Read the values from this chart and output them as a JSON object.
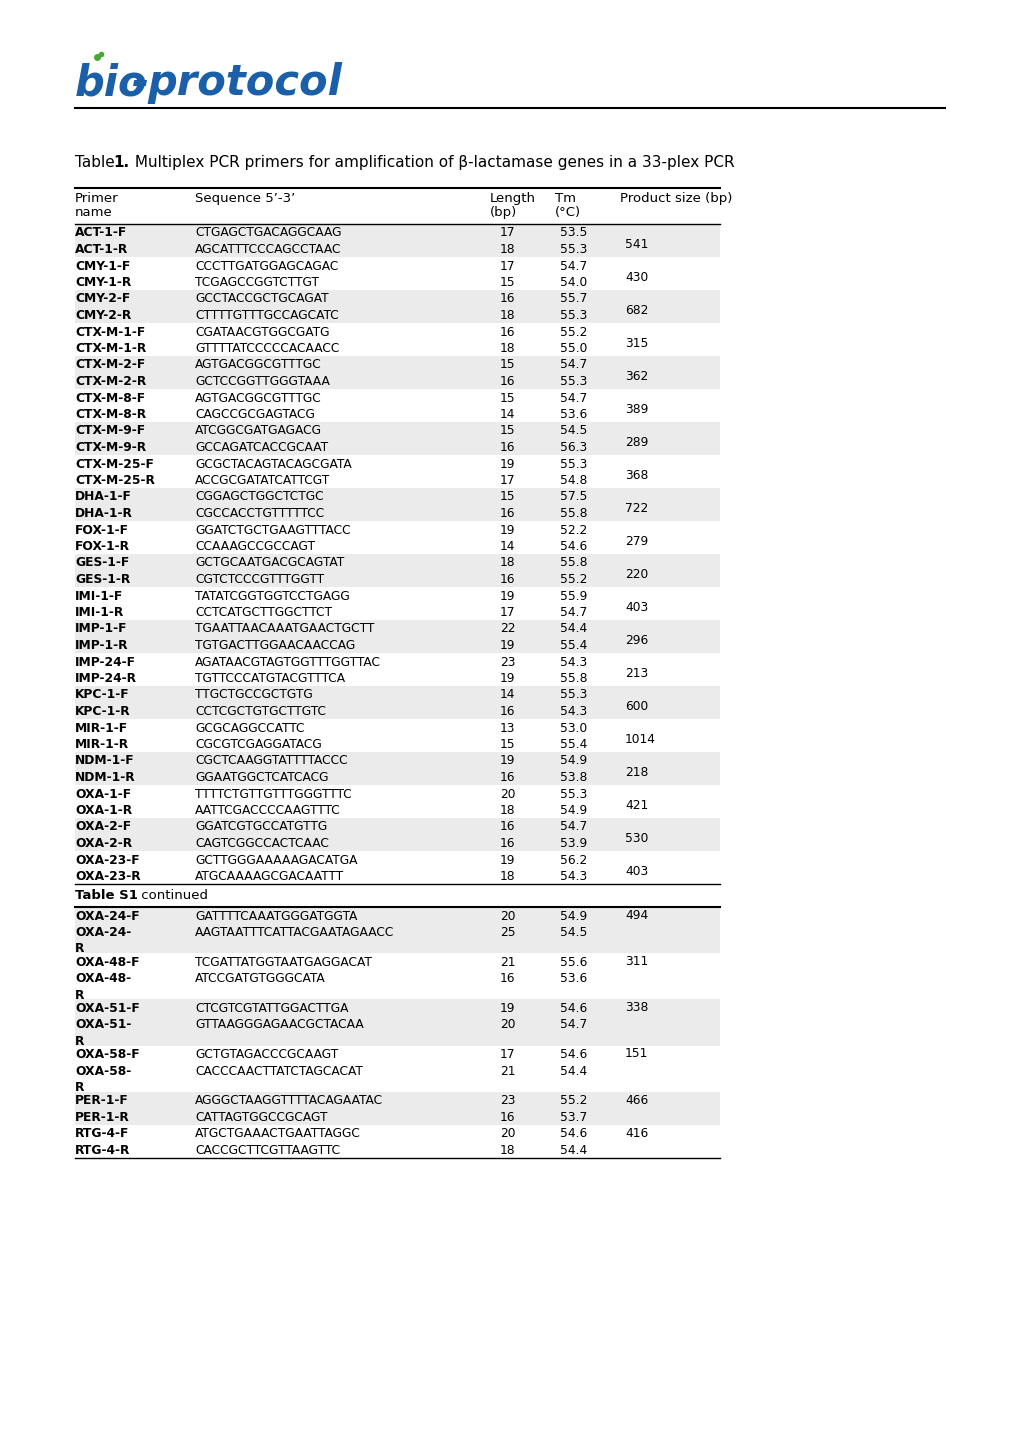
{
  "title_prefix": "Table ",
  "title_num": "1.",
  "title_suffix": " Multiplex PCR primers for amplification of β-lactamase genes in a 33-plex PCR",
  "header1": [
    "Primer",
    "Sequence 5’-3’",
    "Length",
    "Tm",
    "Product size (bp)"
  ],
  "header2": [
    "name",
    "",
    "(bp)",
    "(°C)",
    ""
  ],
  "rows": [
    [
      "ACT-1-F",
      "CTGAGCTGACAGGCAAG",
      "17",
      "53.5",
      "541"
    ],
    [
      "ACT-1-R",
      "AGCATTTCCCAGCCTAAC",
      "18",
      "55.3",
      ""
    ],
    [
      "CMY-1-F",
      "CCCTTGATGGAGCAGAC",
      "17",
      "54.7",
      "430"
    ],
    [
      "CMY-1-R",
      "TCGAGCCGGTCTTGT",
      "15",
      "54.0",
      ""
    ],
    [
      "CMY-2-F",
      "GCCTACCGCTGCAGAT",
      "16",
      "55.7",
      "682"
    ],
    [
      "CMY-2-R",
      "CTTTTGTTTGCCAGCATC",
      "18",
      "55.3",
      ""
    ],
    [
      "CTX-M-1-F",
      "CGATAACGTGGCGATG",
      "16",
      "55.2",
      "315"
    ],
    [
      "CTX-M-1-R",
      "GTTTTATCCCCCACAACC",
      "18",
      "55.0",
      ""
    ],
    [
      "CTX-M-2-F",
      "AGTGACGGCGTTTGC",
      "15",
      "54.7",
      "362"
    ],
    [
      "CTX-M-2-R",
      "GCTCCGGTTGGGTAAA",
      "16",
      "55.3",
      ""
    ],
    [
      "CTX-M-8-F",
      "AGTGACGGCGTTTGC",
      "15",
      "54.7",
      "389"
    ],
    [
      "CTX-M-8-R",
      "CAGCCGCGAGTACG",
      "14",
      "53.6",
      ""
    ],
    [
      "CTX-M-9-F",
      "ATCGGCGATGAGACG",
      "15",
      "54.5",
      "289"
    ],
    [
      "CTX-M-9-R",
      "GCCAGATCACCGCAAT",
      "16",
      "56.3",
      ""
    ],
    [
      "CTX-M-25-F",
      "GCGCTACAGTACAGCGATA",
      "19",
      "55.3",
      "368"
    ],
    [
      "CTX-M-25-R",
      "ACCGCGATATCATTCGT",
      "17",
      "54.8",
      ""
    ],
    [
      "DHA-1-F",
      "CGGAGCTGGCTCTGC",
      "15",
      "57.5",
      "722"
    ],
    [
      "DHA-1-R",
      "CGCCACCTGTTTTTCC",
      "16",
      "55.8",
      ""
    ],
    [
      "FOX-1-F",
      "GGATCTGCTGAAGTTTACC",
      "19",
      "52.2",
      "279"
    ],
    [
      "FOX-1-R",
      "CCAAAGCCGCCAGT",
      "14",
      "54.6",
      ""
    ],
    [
      "GES-1-F",
      "GCTGCAATGACGCAGTAT",
      "18",
      "55.8",
      "220"
    ],
    [
      "GES-1-R",
      "CGTCTCCCGTTTGGTT",
      "16",
      "55.2",
      ""
    ],
    [
      "IMI-1-F",
      "TATATCGGTGGTCCTGAGG",
      "19",
      "55.9",
      "403"
    ],
    [
      "IMI-1-R",
      "CCTCATGCTTGGCTTCT",
      "17",
      "54.7",
      ""
    ],
    [
      "IMP-1-F",
      "TGAATTAACAAATGAACTGCTT",
      "22",
      "54.4",
      "296"
    ],
    [
      "IMP-1-R",
      "TGTGACTTGGAACAACCAG",
      "19",
      "55.4",
      ""
    ],
    [
      "IMP-24-F",
      "AGATAACGTAGTGGTTTGGTTAC",
      "23",
      "54.3",
      "213"
    ],
    [
      "IMP-24-R",
      "TGTTCCCATGTACGTTTCA",
      "19",
      "55.8",
      ""
    ],
    [
      "KPC-1-F",
      "TTGCTGCCGCTGTG",
      "14",
      "55.3",
      "600"
    ],
    [
      "KPC-1-R",
      "CCTCGCTGTGCTTGTC",
      "16",
      "54.3",
      ""
    ],
    [
      "MIR-1-F",
      "GCGCAGGCCATTC",
      "13",
      "53.0",
      "1014"
    ],
    [
      "MIR-1-R",
      "CGCGTCGAGGATACG",
      "15",
      "55.4",
      ""
    ],
    [
      "NDM-1-F",
      "CGCTCAAGGTATTTTACCC",
      "19",
      "54.9",
      "218"
    ],
    [
      "NDM-1-R",
      "GGAATGGCTCATCACG",
      "16",
      "53.8",
      ""
    ],
    [
      "OXA-1-F",
      "TTTTCTGTTGTTTGGGTTTC",
      "20",
      "55.3",
      "421"
    ],
    [
      "OXA-1-R",
      "AATTCGACCCCAAGTTTC",
      "18",
      "54.9",
      ""
    ],
    [
      "OXA-2-F",
      "GGATCGTGCCATGTTG",
      "16",
      "54.7",
      "530"
    ],
    [
      "OXA-2-R",
      "CAGTCGGCCACTCAAC",
      "16",
      "53.9",
      ""
    ],
    [
      "OXA-23-F",
      "GCTTGGGAAAAAGACATGA",
      "19",
      "56.2",
      "403"
    ],
    [
      "OXA-23-R",
      "ATGCAAAAGCGACAATTT",
      "18",
      "54.3",
      ""
    ]
  ],
  "rows2": [
    [
      "OXA-24-F",
      "GATTTTCAAATGGGATGGTA",
      "20",
      "54.9",
      "494"
    ],
    [
      "OXA-24-\nR",
      "AAGTAATTTCATTACGAATAGAACC",
      "25",
      "54.5",
      ""
    ],
    [
      "OXA-48-F",
      "TCGATTATGGTAATGAGGACAT",
      "21",
      "55.6",
      "311"
    ],
    [
      "OXA-48-\nR",
      "ATCCGATGTGGGCATA",
      "16",
      "53.6",
      ""
    ],
    [
      "OXA-51-F",
      "CTCGTCGTATTGGACTTGA",
      "19",
      "54.6",
      "338"
    ],
    [
      "OXA-51-\nR",
      "GTTAAGGGAGAACGCTACAA",
      "20",
      "54.7",
      ""
    ],
    [
      "OXA-58-F",
      "GCTGTAGACCCGCAAGT",
      "17",
      "54.6",
      "151"
    ],
    [
      "OXA-58-\nR",
      "CACCCAACTTATCTAGCACAT",
      "21",
      "54.4",
      ""
    ],
    [
      "PER-1-F",
      "AGGGCTAAGGTTTTACAGAATAC",
      "23",
      "55.2",
      "466"
    ],
    [
      "PER-1-R",
      "CATTAGTGGCCGCAGT",
      "16",
      "53.7",
      ""
    ],
    [
      "RTG-4-F",
      "ATGCTGAAACTGAATTAGGC",
      "20",
      "54.6",
      "416"
    ],
    [
      "RTG-4-R",
      "CACCGCTTCGTTAAGTTC",
      "18",
      "54.4",
      ""
    ]
  ],
  "rows2_names": [
    "OXA-24-F",
    "OXA-24-\nR",
    "OXA-48-F",
    "OXA-48-\nR",
    "OXA-51-F",
    "OXA-51-\nR",
    "OXA-58-F",
    "OXA-58-\nR",
    "PER-1-F",
    "PER-1-R",
    "RTG-4-F",
    "RTG-4-R"
  ],
  "bg_gray": "#ebebeb",
  "bg_white": "#ffffff",
  "logo_color_dark": "#1155aa",
  "logo_color_green": "#44aa44",
  "continued_label_bold": "Table S1",
  "continued_label_normal": " continued"
}
